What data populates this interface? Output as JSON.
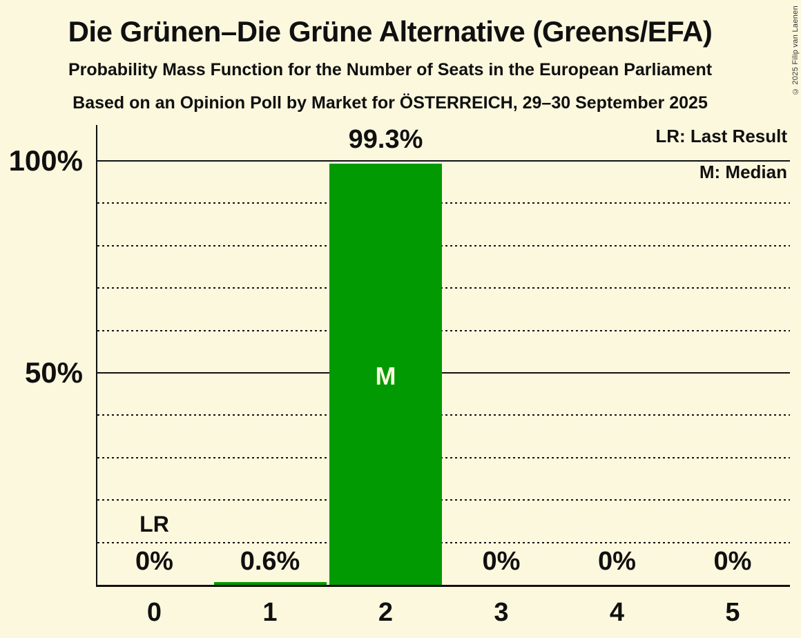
{
  "title": "Die Grünen–Die Grüne Alternative (Greens/EFA)",
  "subtitle1": "Probability Mass Function for the Number of Seats in the European Parliament",
  "subtitle2": "Based on an Opinion Poll by Market for ÖSTERREICH, 29–30 September 2025",
  "copyright": "© 2025 Filip van Laenen",
  "legend": {
    "lr": "LR: Last Result",
    "m": "M: Median"
  },
  "colors": {
    "background": "#FCF8DE",
    "bar": "#029A02",
    "text": "#101010",
    "bar_label": "#FCF8DE"
  },
  "chart_data": {
    "type": "bar",
    "title": "Die Grünen–Die Grüne Alternative (Greens/EFA)",
    "xlabel": "Number of Seats",
    "ylabel": "Probability",
    "categories": [
      "0",
      "1",
      "2",
      "3",
      "4",
      "5"
    ],
    "values": [
      0,
      0.6,
      99.3,
      0,
      0,
      0
    ],
    "value_labels": [
      "0%",
      "0.6%",
      "99.3%",
      "0%",
      "0%",
      "0%"
    ],
    "median_category": "2",
    "median_marker": "M",
    "last_result_category": "0",
    "last_result_marker": "LR",
    "ylim": [
      0,
      100
    ],
    "y_ticks": [
      {
        "label": "100%",
        "value": 100
      },
      {
        "label": "50%",
        "value": 50
      }
    ],
    "solid_gridlines": [
      100,
      50
    ],
    "dotted_gridlines": [
      90,
      80,
      70,
      60,
      40,
      30,
      20,
      10
    ],
    "grid": true,
    "legend_position": "top-right"
  }
}
